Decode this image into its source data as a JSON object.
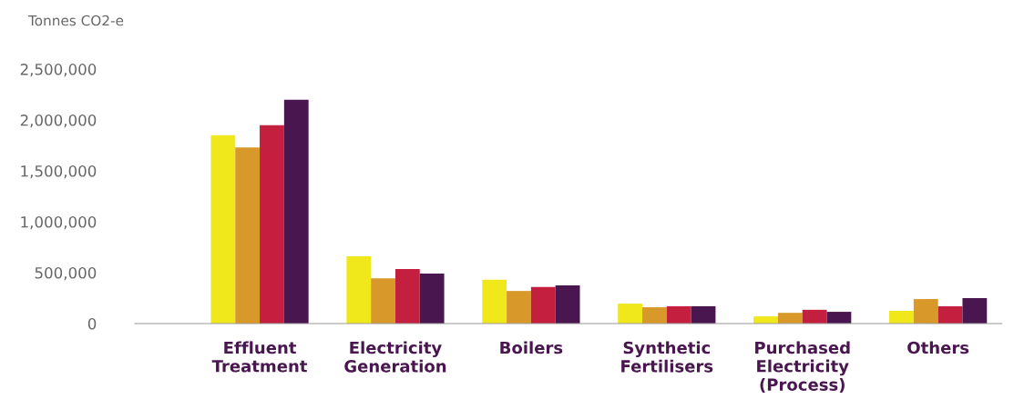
{
  "chart_data": {
    "type": "bar",
    "ylabel": "Tonnes CO2-e",
    "categories": [
      "Effluent\nTreatment",
      "Electricity\nGeneration",
      "Boilers",
      "Synthetic\nFertilisers",
      "Purchased\nElectricity\n(Process)",
      "Others"
    ],
    "series": [
      {
        "color": "#f0e81a",
        "values": [
          1850000,
          660000,
          430000,
          195000,
          70000,
          125000
        ]
      },
      {
        "color": "#d9992a",
        "values": [
          1730000,
          445000,
          320000,
          160000,
          105000,
          240000
        ]
      },
      {
        "color": "#c41f3e",
        "values": [
          1950000,
          535000,
          360000,
          170000,
          135000,
          170000
        ]
      },
      {
        "color": "#4a1650",
        "values": [
          2200000,
          490000,
          375000,
          170000,
          115000,
          250000
        ]
      }
    ],
    "ylim": [
      0,
      2500000
    ],
    "yticks": [
      {
        "value": 0,
        "label": "0"
      },
      {
        "value": 500000,
        "label": "500,000"
      },
      {
        "value": 1000000,
        "label": "1,000,000"
      },
      {
        "value": 1500000,
        "label": "1,500,000"
      },
      {
        "value": 2000000,
        "label": "2,000,000"
      },
      {
        "value": 2500000,
        "label": "2,500,000"
      }
    ],
    "grid": false,
    "legend": false
  }
}
